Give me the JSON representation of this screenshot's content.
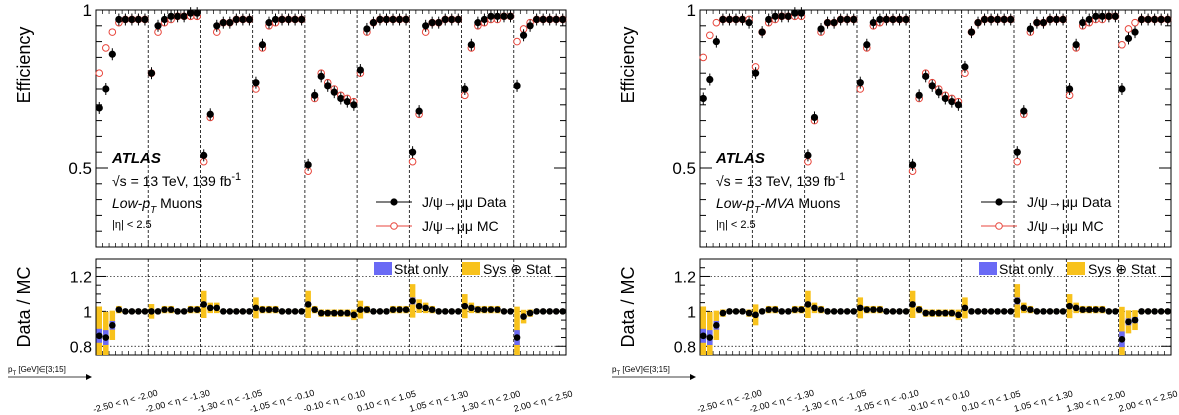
{
  "chart_data": [
    {
      "type": "scatter",
      "panel": "left",
      "ylabel": "Efficiency",
      "ratio_ylabel": "Data / MC",
      "atlas_label": "ATLAS",
      "energy_label": "√s = 13 TeV, 139 fb",
      "lumi_sup": "-1",
      "muon_label_pre": "Low-p",
      "muon_label_sub": "T",
      "muon_label_post": " Muons",
      "eta_label": "|η| < 2.5",
      "ylim": [
        0.25,
        1.0
      ],
      "yticks": [
        "1",
        "0.5"
      ],
      "ratio_ylim": [
        0.75,
        1.3
      ],
      "ratio_yticks": [
        "1.2",
        "1",
        "0.8"
      ],
      "legend": [
        "J/ψ→μμ Data",
        "J/ψ→μμ MC"
      ],
      "ratio_legend": [
        "Stat only",
        "Sys ⊕ Stat"
      ],
      "x_axis_note": "p",
      "x_axis_note_sub": "T",
      "x_axis_note_post": " [GeV]∈[3;15]",
      "eta_bins": [
        "-2.50 < η < -2.00",
        "-2.00 < η < -1.30",
        "-1.30 < η < -1.05",
        "-1.05 < η < -0.10",
        "-0.10 < η < 0.10",
        "0.10 < η < 1.05",
        "1.05 < η < 1.30",
        "1.30 < η < 2.00",
        "2.00 < η < 2.50"
      ],
      "series": [
        {
          "name": "J/ψ→μμ Data",
          "bins": [
            [
              0.69,
              0.75,
              0.86,
              0.97,
              0.97,
              0.97,
              0.97,
              0.97
            ],
            [
              0.8,
              0.95,
              0.97,
              0.98,
              0.98,
              0.98,
              0.99,
              0.99
            ],
            [
              0.54,
              0.67,
              0.95,
              0.96,
              0.96,
              0.97,
              0.97,
              0.97
            ],
            [
              0.77,
              0.89,
              0.96,
              0.97,
              0.97,
              0.97,
              0.97,
              0.97
            ],
            [
              0.51,
              0.73,
              0.79,
              0.76,
              0.74,
              0.72,
              0.71,
              0.7
            ],
            [
              0.81,
              0.94,
              0.96,
              0.97,
              0.97,
              0.97,
              0.97,
              0.97
            ],
            [
              0.55,
              0.68,
              0.95,
              0.96,
              0.96,
              0.97,
              0.97,
              0.97
            ],
            [
              0.75,
              0.89,
              0.96,
              0.97,
              0.98,
              0.98,
              0.98,
              0.98
            ],
            [
              0.76,
              0.92,
              0.95,
              0.97,
              0.97,
              0.97,
              0.97,
              0.97
            ]
          ]
        },
        {
          "name": "J/ψ→μμ MC",
          "bins": [
            [
              0.8,
              0.88,
              0.93,
              0.96,
              0.97,
              0.97,
              0.97,
              0.97
            ],
            [
              0.8,
              0.93,
              0.96,
              0.97,
              0.98,
              0.98,
              0.98,
              0.98
            ],
            [
              0.52,
              0.66,
              0.93,
              0.96,
              0.96,
              0.97,
              0.97,
              0.97
            ],
            [
              0.75,
              0.88,
              0.95,
              0.96,
              0.97,
              0.97,
              0.97,
              0.97
            ],
            [
              0.49,
              0.72,
              0.8,
              0.77,
              0.75,
              0.73,
              0.72,
              0.71
            ],
            [
              0.8,
              0.93,
              0.96,
              0.97,
              0.97,
              0.97,
              0.97,
              0.97
            ],
            [
              0.52,
              0.67,
              0.93,
              0.96,
              0.96,
              0.97,
              0.97,
              0.97
            ],
            [
              0.73,
              0.88,
              0.95,
              0.96,
              0.97,
              0.97,
              0.98,
              0.98
            ],
            [
              0.9,
              0.94,
              0.96,
              0.97,
              0.97,
              0.97,
              0.97,
              0.97
            ]
          ]
        }
      ],
      "ratio_bins": [
        [
          0.86,
          0.85,
          0.92,
          1.01,
          1.0,
          1.0,
          1.0,
          1.0
        ],
        [
          1.0,
          1.0,
          1.01,
          1.01,
          1.0,
          1.0,
          1.01,
          1.01
        ],
        [
          1.04,
          1.02,
          1.02,
          1.0,
          1.0,
          1.0,
          1.0,
          1.0
        ],
        [
          1.02,
          1.01,
          1.01,
          1.01,
          1.0,
          1.0,
          1.0,
          1.0
        ],
        [
          1.04,
          1.01,
          0.99,
          0.99,
          0.99,
          0.99,
          0.99,
          0.98
        ],
        [
          1.01,
          1.01,
          1.0,
          1.0,
          1.0,
          1.01,
          1.01,
          1.01
        ],
        [
          1.06,
          1.03,
          1.02,
          1.01,
          1.0,
          1.0,
          1.0,
          1.0
        ],
        [
          1.03,
          1.02,
          1.01,
          1.01,
          1.01,
          1.01,
          1.0,
          1.0
        ],
        [
          0.85,
          0.97,
          0.99,
          1.0,
          1.0,
          1.0,
          1.0,
          1.0
        ]
      ]
    },
    {
      "type": "scatter",
      "panel": "right",
      "ylabel": "Efficiency",
      "ratio_ylabel": "Data / MC",
      "atlas_label": "ATLAS",
      "energy_label": "√s = 13 TeV, 139 fb",
      "lumi_sup": "-1",
      "muon_label_pre": "Low-p",
      "muon_label_sub": "T",
      "muon_label_post": "-MVA Muons",
      "eta_label": "|η| < 2.5",
      "ylim": [
        0.25,
        1.0
      ],
      "yticks": [
        "1",
        "0.5"
      ],
      "ratio_ylim": [
        0.75,
        1.3
      ],
      "ratio_yticks": [
        "1.2",
        "1",
        "0.8"
      ],
      "legend": [
        "J/ψ→μμ Data",
        "J/ψ→μμ MC"
      ],
      "ratio_legend": [
        "Stat only",
        "Sys ⊕ Stat"
      ],
      "x_axis_note": "p",
      "x_axis_note_sub": "T",
      "x_axis_note_post": " [GeV]∈[3;15]",
      "eta_bins": [
        "-2.50 < η < -2.00",
        "-2.00 < η < -1.30",
        "-1.30 < η < -1.05",
        "-1.05 < η < -0.10",
        "-0.10 < η < 0.10",
        "0.10 < η < 1.05",
        "1.05 < η < 1.30",
        "1.30 < η < 2.00",
        "2.00 < η < 2.50"
      ],
      "series": [
        {
          "name": "J/ψ→μμ Data",
          "bins": [
            [
              0.72,
              0.78,
              0.9,
              0.97,
              0.97,
              0.97,
              0.97,
              0.96
            ],
            [
              0.8,
              0.93,
              0.97,
              0.98,
              0.98,
              0.98,
              0.99,
              0.99
            ],
            [
              0.54,
              0.66,
              0.94,
              0.96,
              0.96,
              0.97,
              0.97,
              0.97
            ],
            [
              0.77,
              0.89,
              0.96,
              0.97,
              0.97,
              0.97,
              0.97,
              0.97
            ],
            [
              0.51,
              0.73,
              0.79,
              0.76,
              0.74,
              0.72,
              0.71,
              0.7
            ],
            [
              0.82,
              0.93,
              0.96,
              0.97,
              0.97,
              0.97,
              0.97,
              0.97
            ],
            [
              0.55,
              0.68,
              0.94,
              0.96,
              0.96,
              0.97,
              0.97,
              0.97
            ],
            [
              0.75,
              0.89,
              0.96,
              0.97,
              0.98,
              0.98,
              0.98,
              0.98
            ],
            [
              0.75,
              0.91,
              0.93,
              0.97,
              0.97,
              0.97,
              0.97,
              0.97
            ]
          ]
        },
        {
          "name": "J/ψ→μμ MC",
          "bins": [
            [
              0.85,
              0.92,
              0.96,
              0.97,
              0.97,
              0.97,
              0.97,
              0.97
            ],
            [
              0.82,
              0.93,
              0.96,
              0.97,
              0.98,
              0.98,
              0.98,
              0.98
            ],
            [
              0.52,
              0.65,
              0.93,
              0.96,
              0.96,
              0.97,
              0.97,
              0.97
            ],
            [
              0.75,
              0.88,
              0.95,
              0.96,
              0.97,
              0.97,
              0.97,
              0.97
            ],
            [
              0.49,
              0.72,
              0.8,
              0.77,
              0.75,
              0.73,
              0.72,
              0.71
            ],
            [
              0.8,
              0.93,
              0.96,
              0.97,
              0.97,
              0.97,
              0.97,
              0.97
            ],
            [
              0.52,
              0.67,
              0.93,
              0.96,
              0.96,
              0.97,
              0.97,
              0.97
            ],
            [
              0.73,
              0.88,
              0.95,
              0.96,
              0.97,
              0.97,
              0.98,
              0.98
            ],
            [
              0.89,
              0.94,
              0.96,
              0.97,
              0.97,
              0.97,
              0.97,
              0.97
            ]
          ]
        }
      ],
      "ratio_bins": [
        [
          0.86,
          0.85,
          0.92,
          0.99,
          1.0,
          1.0,
          1.0,
          0.99
        ],
        [
          0.98,
          1.0,
          1.01,
          1.01,
          1.0,
          1.0,
          1.01,
          1.01
        ],
        [
          1.04,
          1.02,
          1.01,
          1.0,
          1.0,
          1.0,
          1.0,
          1.0
        ],
        [
          1.02,
          1.01,
          1.01,
          1.01,
          1.0,
          1.0,
          1.0,
          1.0
        ],
        [
          1.04,
          1.01,
          0.99,
          0.99,
          0.99,
          0.99,
          0.99,
          0.98
        ],
        [
          1.02,
          1.0,
          1.0,
          1.0,
          1.0,
          1.0,
          1.0,
          1.0
        ],
        [
          1.06,
          1.02,
          1.01,
          1.0,
          1.0,
          1.0,
          1.0,
          1.0
        ],
        [
          1.03,
          1.02,
          1.01,
          1.01,
          1.01,
          1.01,
          1.0,
          1.0
        ],
        [
          0.84,
          0.94,
          0.95,
          1.0,
          1.0,
          1.0,
          1.0,
          1.0
        ]
      ]
    }
  ],
  "colors": {
    "data": "#000000",
    "mc": "#e8463c",
    "stat_only": "#6a6af5",
    "sys_stat": "#f8c21c"
  }
}
